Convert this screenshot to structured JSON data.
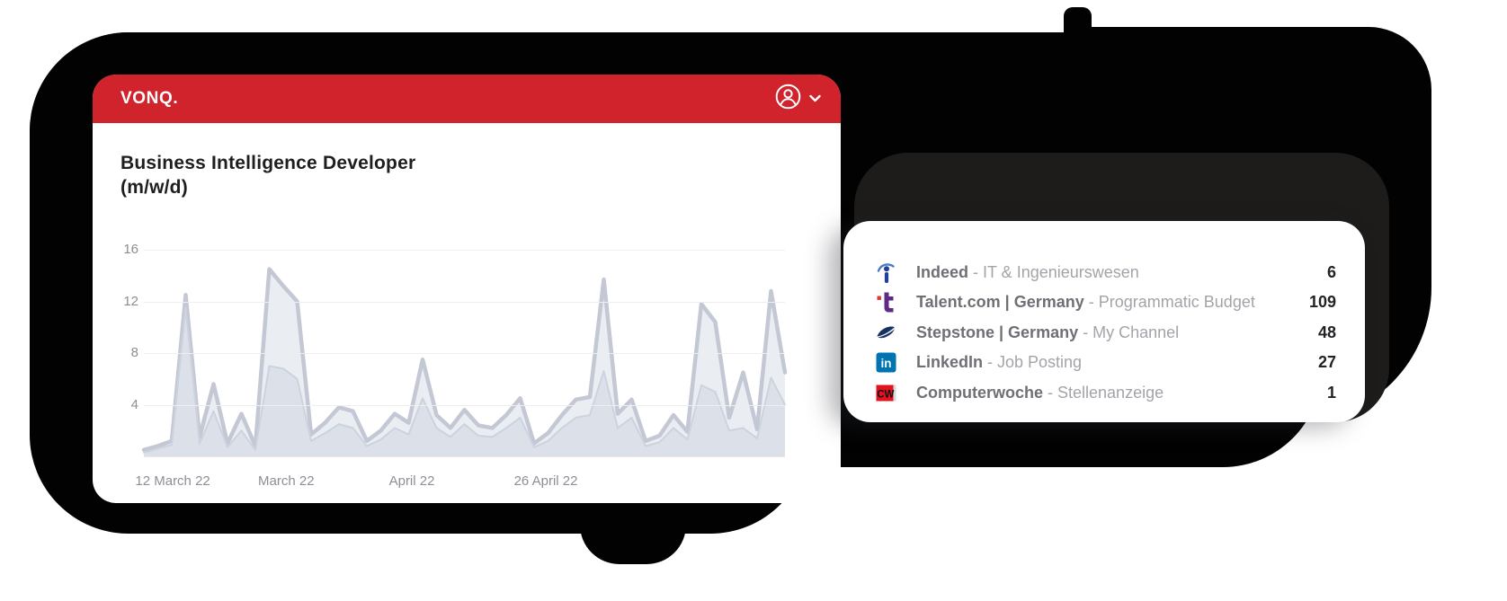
{
  "header": {
    "brand": "VONQ.",
    "user_menu": {
      "icon": "user-circle-icon",
      "chevron": "chevron-down-icon"
    }
  },
  "chart_card": {
    "title_line1": "Business Intelligence Developer",
    "title_line2": "(m/w/d)"
  },
  "chart_data": {
    "type": "area",
    "title": "Business Intelligence Developer (m/w/d)",
    "ylim": [
      0,
      16
    ],
    "y_ticks": [
      16,
      12,
      8,
      4
    ],
    "x_ticks": [
      {
        "label": "12 March 22",
        "pos": 0.045
      },
      {
        "label": "March 22",
        "pos": 0.222
      },
      {
        "label": "April 22",
        "pos": 0.418
      },
      {
        "label": "26 April 22",
        "pos": 0.627
      }
    ],
    "x_range": "daily values, 12 March 22 to 27 April 22",
    "grid": true,
    "legend": "none",
    "series": [
      {
        "name": "outer_area",
        "stroke": "#c3c8d4",
        "fill": "#eaeef3",
        "values": [
          0.5,
          0.8,
          1.2,
          12.5,
          1.5,
          5.6,
          1.0,
          3.3,
          0.8,
          14.5,
          13.2,
          12.0,
          1.7,
          2.6,
          3.8,
          3.5,
          1.2,
          2.0,
          3.3,
          2.6,
          7.5,
          3.2,
          2.2,
          3.6,
          2.4,
          2.2,
          3.2,
          4.5,
          1.0,
          1.8,
          3.2,
          4.4,
          4.6,
          13.7,
          3.3,
          4.4,
          1.2,
          1.6,
          3.2,
          1.9,
          11.8,
          10.4,
          3.0,
          6.5,
          2.1,
          12.8,
          6.5
        ]
      },
      {
        "name": "inner_area",
        "stroke": "#cdd3de",
        "fill": "#dbe0e9",
        "values": [
          0.3,
          0.6,
          0.9,
          11.5,
          1.0,
          3.5,
          0.7,
          2.0,
          0.5,
          7.0,
          6.8,
          6.0,
          1.2,
          1.8,
          2.5,
          2.2,
          0.8,
          1.3,
          2.2,
          1.7,
          4.5,
          2.2,
          1.5,
          2.5,
          1.6,
          1.5,
          2.2,
          3.0,
          0.7,
          1.2,
          2.2,
          3.0,
          3.2,
          6.6,
          2.2,
          3.0,
          0.8,
          1.1,
          2.2,
          1.3,
          5.5,
          5.0,
          2.0,
          2.2,
          1.4,
          6.1,
          4.0
        ]
      }
    ]
  },
  "channels": {
    "rows": [
      {
        "icon": "indeed-logo-icon",
        "name": "Indeed",
        "detail": "- IT & Ingenieurswesen",
        "value": "6"
      },
      {
        "icon": "talent-logo-icon",
        "name": "Talent.com | Germany",
        "detail": "- Programmatic Budget",
        "value": "109"
      },
      {
        "icon": "stepstone-logo-icon",
        "name": "Stepstone | Germany",
        "detail": "- My Channel",
        "value": "48"
      },
      {
        "icon": "linkedin-logo-icon",
        "name": "LinkedIn",
        "detail": "- Job Posting",
        "value": "27"
      },
      {
        "icon": "computerwoche-logo-icon",
        "name": "Computerwoche",
        "detail": "- Stellenanzeige",
        "value": "1"
      }
    ]
  },
  "colors": {
    "brand_red": "#d0232b",
    "backdrop_black": "#020202",
    "backdrop_band": "#1d1c1a",
    "line_stroke": "#c3c8d4",
    "area_outer": "#eaeef3",
    "area_inner": "#dbe0e9"
  }
}
